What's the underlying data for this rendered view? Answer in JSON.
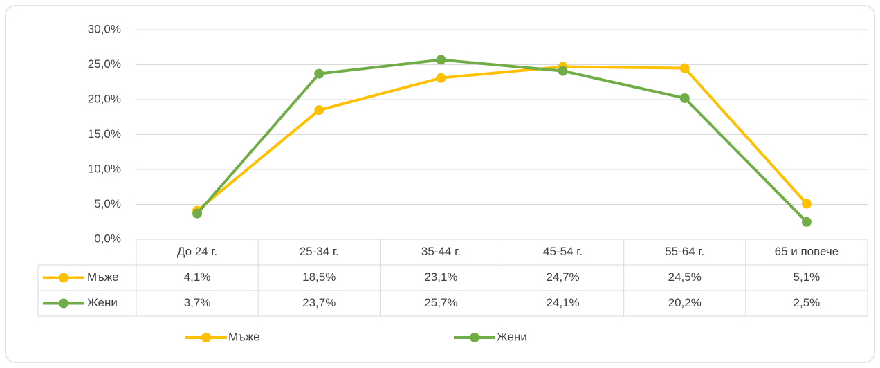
{
  "chart_data": {
    "type": "line",
    "categories": [
      "До 24 г.",
      "25-34 г.",
      "35-44 г.",
      "45-54 г.",
      "55-64 г.",
      "65 и повече"
    ],
    "series": [
      {
        "name": "Мъже",
        "color": "#FFC000",
        "values": [
          4.1,
          18.5,
          23.1,
          24.7,
          24.5,
          5.1
        ],
        "value_labels": [
          "4,1%",
          "18,5%",
          "23,1%",
          "24,7%",
          "24,5%",
          "5,1%"
        ]
      },
      {
        "name": "Жени",
        "color": "#70AD47",
        "values": [
          3.7,
          23.7,
          25.7,
          24.1,
          20.2,
          2.5
        ],
        "value_labels": [
          "3,7%",
          "23,7%",
          "25,7%",
          "24,1%",
          "20,2%",
          "2,5%"
        ]
      }
    ],
    "ylim": [
      0,
      30
    ],
    "yticks": [
      {
        "value": 0,
        "label": "0,0%"
      },
      {
        "value": 5,
        "label": "5,0%"
      },
      {
        "value": 10,
        "label": "10,0%"
      },
      {
        "value": 15,
        "label": "15,0%"
      },
      {
        "value": 20,
        "label": "20,0%"
      },
      {
        "value": 25,
        "label": "25,0%"
      },
      {
        "value": 30,
        "label": "30,0%"
      }
    ],
    "grid": true,
    "legend": "bottom",
    "data_table": true
  }
}
